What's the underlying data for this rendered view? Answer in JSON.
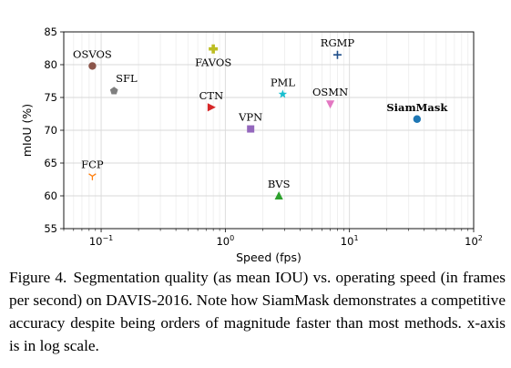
{
  "chart_data": {
    "type": "scatter",
    "title": "",
    "xlabel": "Speed (fps)",
    "ylabel": "mIoU (%)",
    "x_scale": "log",
    "xlim": [
      0.05,
      100
    ],
    "ylim": [
      55,
      85
    ],
    "x_major_ticks": [
      0.1,
      1,
      10,
      100
    ],
    "x_tick_labels": [
      {
        "mant": "10",
        "exp": "−1"
      },
      {
        "mant": "10",
        "exp": "0"
      },
      {
        "mant": "10",
        "exp": "1"
      },
      {
        "mant": "10",
        "exp": "2"
      }
    ],
    "y_ticks": [
      55,
      60,
      65,
      70,
      75,
      80,
      85
    ],
    "grid": true,
    "legend": "none",
    "points": [
      {
        "label": "OSVOS",
        "x": 0.085,
        "y": 79.8,
        "marker": "circle",
        "color": "#8c564b",
        "label_pos": "above"
      },
      {
        "label": "SFL",
        "x": 0.127,
        "y": 76.0,
        "marker": "pentagon",
        "color": "#7f7f7f",
        "label_pos": "above-right"
      },
      {
        "label": "FAVOS",
        "x": 0.8,
        "y": 82.4,
        "marker": "plus-filled",
        "color": "#bcbd22",
        "label_pos": "below"
      },
      {
        "label": "CTN",
        "x": 0.77,
        "y": 73.5,
        "marker": "triangle-right",
        "color": "#d62728",
        "label_pos": "above"
      },
      {
        "label": "VPN",
        "x": 1.6,
        "y": 70.2,
        "marker": "square",
        "color": "#9467bd",
        "label_pos": "above"
      },
      {
        "label": "PML",
        "x": 2.9,
        "y": 75.5,
        "marker": "star",
        "color": "#17becf",
        "label_pos": "above"
      },
      {
        "label": "BVS",
        "x": 2.7,
        "y": 60.0,
        "marker": "triangle-up",
        "color": "#2ca02c",
        "label_pos": "above"
      },
      {
        "label": "RGMP",
        "x": 8.0,
        "y": 81.5,
        "marker": "plus",
        "color": "#1f4e8a",
        "label_pos": "above"
      },
      {
        "label": "OSMN",
        "x": 7.0,
        "y": 74.0,
        "marker": "triangle-down",
        "color": "#e377c2",
        "label_pos": "above"
      },
      {
        "label": "FCP",
        "x": 0.085,
        "y": 63.0,
        "marker": "tri-down",
        "color": "#ff7f0e",
        "label_pos": "above"
      },
      {
        "label": "SiamMask",
        "x": 35,
        "y": 71.7,
        "marker": "circle",
        "color": "#1f77b4",
        "label_pos": "above",
        "bold": true
      }
    ]
  },
  "caption": {
    "label": "Figure 4.",
    "text": "Segmentation quality (as mean IOU) vs. operating speed (in frames per second) on DAVIS-2016.  Note how SiamMask demonstrates a competitive accuracy despite being orders of magnitude faster than most methods. x-axis is in log scale."
  }
}
